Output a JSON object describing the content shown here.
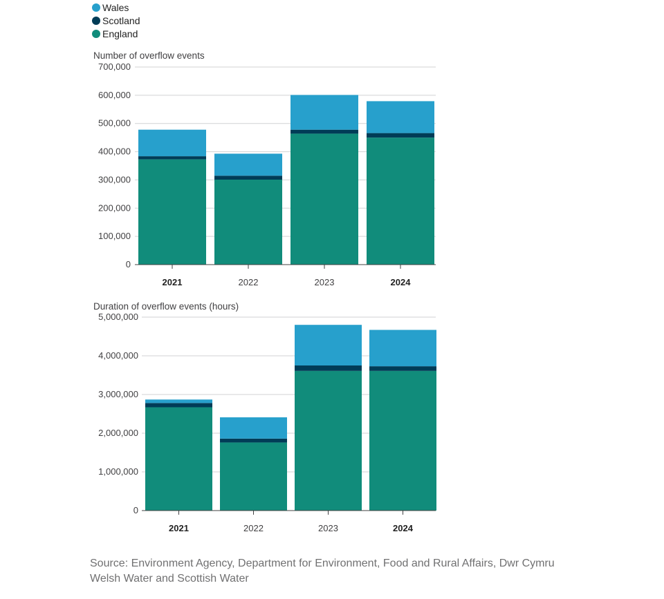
{
  "legend": [
    {
      "label": "Wales",
      "color": "#27a0cc"
    },
    {
      "label": "Scotland",
      "color": "#003c57"
    },
    {
      "label": "England",
      "color": "#118c7b"
    }
  ],
  "chart_data": [
    {
      "type": "bar",
      "stacked": true,
      "title": "Number of overflow events",
      "categories": [
        "2021",
        "2022",
        "2023",
        "2024"
      ],
      "bold_categories": [
        "2021",
        "2024"
      ],
      "series": [
        {
          "name": "England",
          "color": "#118c7b",
          "values": [
            373000,
            301000,
            464000,
            450000
          ]
        },
        {
          "name": "Scotland",
          "color": "#003c57",
          "values": [
            11000,
            14000,
            14000,
            16000
          ]
        },
        {
          "name": "Wales",
          "color": "#27a0cc",
          "values": [
            94000,
            78000,
            123000,
            113000
          ]
        }
      ],
      "ylim": [
        0,
        700000
      ],
      "yticks": [
        "0",
        "100,000",
        "200,000",
        "300,000",
        "400,000",
        "500,000",
        "600,000",
        "700,000"
      ],
      "grid": true
    },
    {
      "type": "bar",
      "stacked": true,
      "title": "Duration of overflow events (hours)",
      "categories": [
        "2021",
        "2022",
        "2023",
        "2024"
      ],
      "bold_categories": [
        "2021",
        "2024"
      ],
      "series": [
        {
          "name": "England",
          "color": "#118c7b",
          "values": [
            2670000,
            1760000,
            3610000,
            3610000
          ]
        },
        {
          "name": "Scotland",
          "color": "#003c57",
          "values": [
            110000,
            100000,
            140000,
            120000
          ]
        },
        {
          "name": "Wales",
          "color": "#27a0cc",
          "values": [
            90000,
            550000,
            1050000,
            940000
          ]
        }
      ],
      "ylim": [
        0,
        5000000
      ],
      "yticks": [
        "0",
        "1,000,000",
        "2,000,000",
        "3,000,000",
        "4,000,000",
        "5,000,000"
      ],
      "grid": true
    }
  ],
  "source": "Source: Environment Agency, Department for Environment, Food and Rural Affairs, Dwr Cymru Welsh Water and Scottish Water"
}
